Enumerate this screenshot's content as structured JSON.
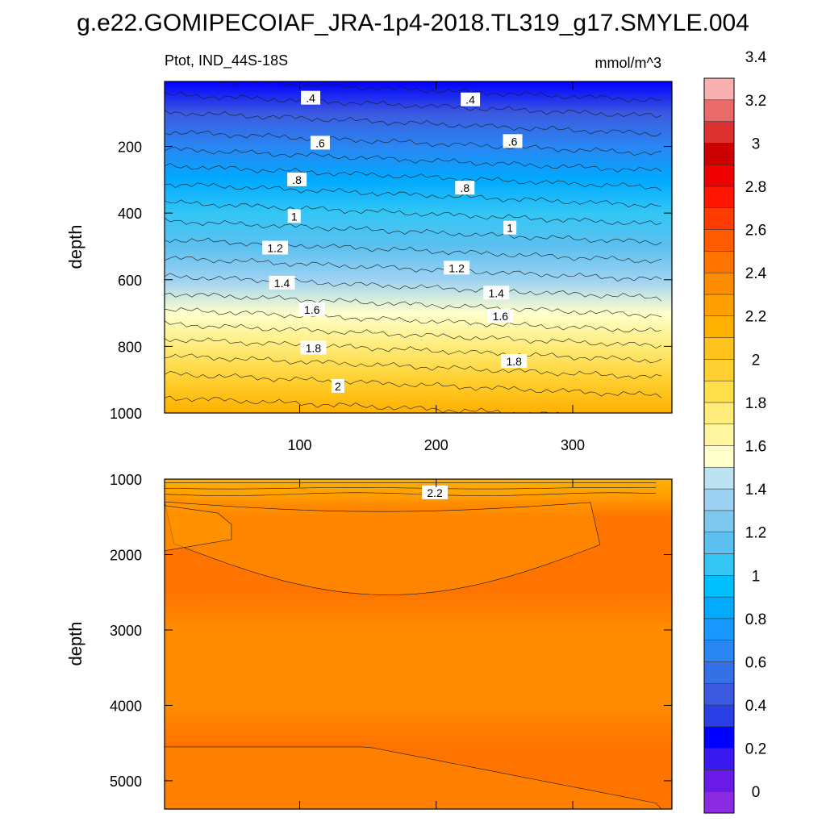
{
  "title": "g.e22.GOMIPECOIAF_JRA-1p4-2018.TL319_g17.SMYLE.004",
  "chart_data": [
    {
      "type": "heatmap",
      "panel": "upper",
      "subtitle_left": "Ptot, IND_44S-18S",
      "subtitle_right": "mmol/m^3",
      "ylabel": "depth",
      "xlabel": "",
      "xlim": [
        1,
        365
      ],
      "ylim": [
        1000,
        5
      ],
      "y_reversed": true,
      "xticks": [
        100,
        200,
        300
      ],
      "yticks": [
        200,
        400,
        600,
        800,
        1000
      ],
      "contour_labels": [
        {
          "text": ".4",
          "x": 108,
          "y": 55
        },
        {
          "text": ".4",
          "x": 225,
          "y": 60
        },
        {
          "text": ".6",
          "x": 115,
          "y": 190
        },
        {
          "text": ".6",
          "x": 256,
          "y": 185
        },
        {
          "text": ".8",
          "x": 98,
          "y": 300
        },
        {
          "text": ".8",
          "x": 221,
          "y": 325
        },
        {
          "text": "1",
          "x": 96,
          "y": 410
        },
        {
          "text": "1",
          "x": 254,
          "y": 445
        },
        {
          "text": "1.2",
          "x": 82,
          "y": 505
        },
        {
          "text": "1.2",
          "x": 215,
          "y": 565
        },
        {
          "text": "1.4",
          "x": 87,
          "y": 610
        },
        {
          "text": "1.4",
          "x": 244,
          "y": 640
        },
        {
          "text": "1.6",
          "x": 109,
          "y": 690
        },
        {
          "text": "1.6",
          "x": 247,
          "y": 710
        },
        {
          "text": "1.8",
          "x": 110,
          "y": 805
        },
        {
          "text": "1.8",
          "x": 257,
          "y": 845
        },
        {
          "text": "2",
          "x": 128,
          "y": 920
        }
      ],
      "depth_profile_mid": {
        "depth": [
          5,
          100,
          200,
          300,
          400,
          500,
          600,
          700,
          800,
          900,
          1000
        ],
        "ptot": [
          0.25,
          0.45,
          0.62,
          0.82,
          1.0,
          1.18,
          1.36,
          1.55,
          1.78,
          1.98,
          2.12
        ]
      }
    },
    {
      "type": "heatmap",
      "panel": "lower",
      "ylabel": "depth",
      "xlabel": "",
      "xlim": [
        1,
        365
      ],
      "ylim": [
        5375,
        1000
      ],
      "y_reversed": true,
      "yticks": [
        1000,
        2000,
        3000,
        4000,
        5000
      ],
      "contour_labels": [
        {
          "text": "2.2",
          "x": 199,
          "y": 1180
        }
      ],
      "depth_profile_mid": {
        "depth": [
          1000,
          1200,
          1500,
          2000,
          2500,
          3000,
          4000,
          4500,
          5000,
          5375
        ],
        "ptot": [
          2.15,
          2.3,
          2.42,
          2.43,
          2.41,
          2.37,
          2.35,
          2.41,
          2.43,
          2.42
        ]
      }
    }
  ],
  "colorbar": {
    "tick_labels": [
      "0",
      "0.2",
      "0.4",
      "0.6",
      "0.8",
      "1",
      "1.2",
      "1.4",
      "1.6",
      "1.8",
      "2",
      "2.2",
      "2.4",
      "2.6",
      "2.8",
      "3",
      "3.2",
      "3.4"
    ],
    "min": -0.1,
    "step": 0.1,
    "colors": [
      "#8a2be2",
      "#6a1ae8",
      "#3a18f0",
      "#0000ff",
      "#2a40e6",
      "#3c5ae0",
      "#3470e6",
      "#2a86f2",
      "#1998ff",
      "#00aaff",
      "#00bfff",
      "#33c6f5",
      "#5cc0f0",
      "#7ec8ef",
      "#9dd2f2",
      "#bde2f4",
      "#ffffcc",
      "#fff4a0",
      "#ffec7a",
      "#ffe04a",
      "#ffd030",
      "#ffc21a",
      "#ffb000",
      "#ffa000",
      "#ff8c00",
      "#ff7400",
      "#ff5a00",
      "#ff3c00",
      "#ff1500",
      "#ee0000",
      "#cc0000",
      "#dd3030",
      "#ea6a6a",
      "#f8b0b0"
    ]
  }
}
